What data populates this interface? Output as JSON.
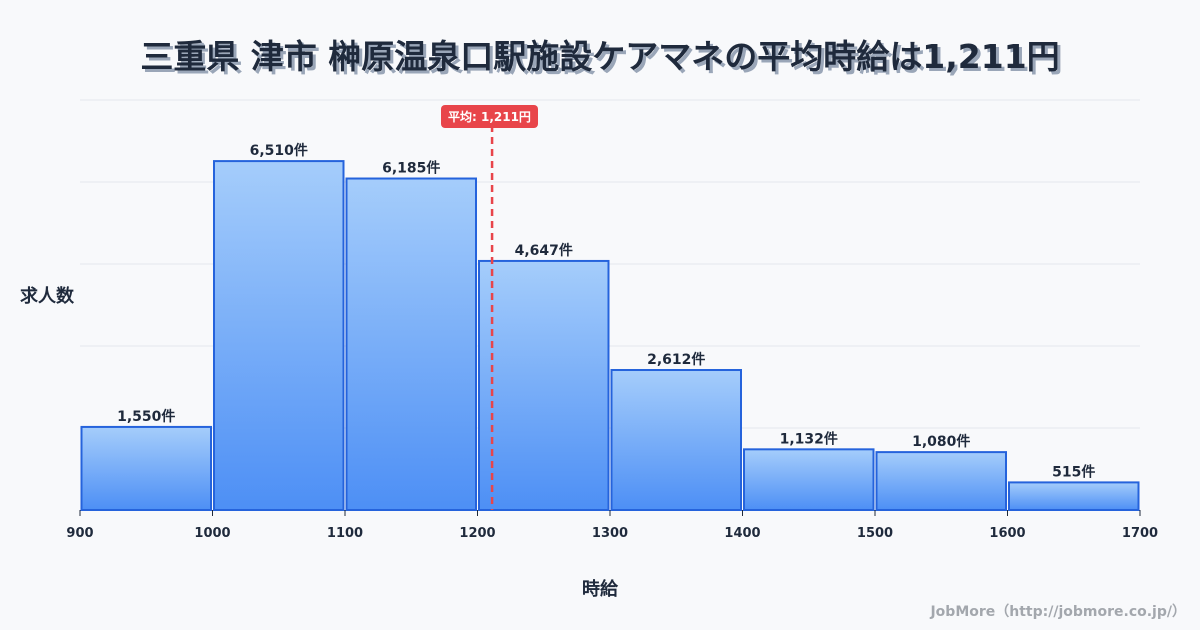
{
  "title": "三重県 津市 榊原温泉口駅施設ケアマネの平均時給は1,211円",
  "y_axis_label": "求人数",
  "x_axis_label": "時給",
  "average_label": "平均: 1,211円",
  "credit": "JobMore（http://jobmore.co.jp/）",
  "colors": {
    "bar_top": "#a5cdfb",
    "bar_bottom": "#4d8ff5",
    "bar_stroke": "#2563dc",
    "avg_line": "#e8454a"
  },
  "chart_data": {
    "type": "bar",
    "title": "三重県 津市 榊原温泉口駅施設ケアマネの平均時給は1,211円",
    "xlabel": "時給",
    "ylabel": "求人数",
    "bins": [
      [
        900,
        1000
      ],
      [
        1000,
        1100
      ],
      [
        1100,
        1200
      ],
      [
        1200,
        1300
      ],
      [
        1300,
        1400
      ],
      [
        1400,
        1500
      ],
      [
        1500,
        1600
      ],
      [
        1600,
        1700
      ]
    ],
    "categories": [
      "900-1000",
      "1000-1100",
      "1100-1200",
      "1200-1300",
      "1300-1400",
      "1400-1500",
      "1500-1600",
      "1600-1700"
    ],
    "values": [
      1550,
      6510,
      6185,
      4647,
      2612,
      1132,
      1080,
      515
    ],
    "value_labels": [
      "1,550件",
      "6,510件",
      "6,185件",
      "4,647件",
      "2,612件",
      "1,132件",
      "1,080件",
      "515件"
    ],
    "x_ticks": [
      "900",
      "1000",
      "1100",
      "1200",
      "1300",
      "1400",
      "1500",
      "1600",
      "1700"
    ],
    "average": 1211,
    "grid": true,
    "ylim": [
      0,
      7650
    ]
  }
}
